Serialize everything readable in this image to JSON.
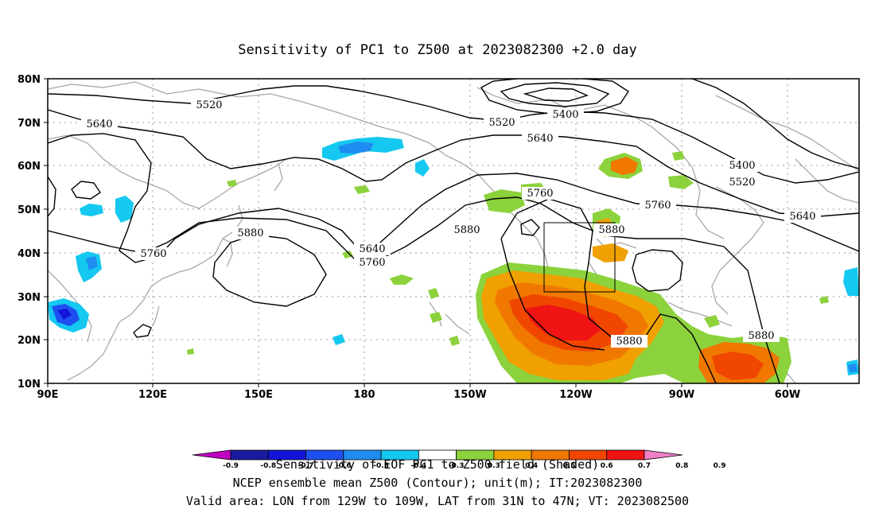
{
  "title": "Sensitivity of PC1 to Z500 at 2023082300 +2.0 day",
  "lat_labels": [
    "80N",
    "70N",
    "60N",
    "50N",
    "40N",
    "30N",
    "20N",
    "10N"
  ],
  "lon_labels": [
    "90E",
    "120E",
    "150E",
    "180",
    "150W",
    "120W",
    "90W",
    "60W"
  ],
  "contour_labels": [
    "5520",
    "5640",
    "5400",
    "5520",
    "5640",
    "5400",
    "5520",
    "5760",
    "5760",
    "5640",
    "5880",
    "5880",
    "5640",
    "5760",
    "5760",
    "5880",
    "5880",
    "5880"
  ],
  "colorbar": {
    "colors": [
      "#c000c0",
      "#1a1aa0",
      "#1414d8",
      "#1e50f0",
      "#1e8cf0",
      "#14c8f0",
      "#ffffff",
      "#8cd23c",
      "#f0a000",
      "#f07800",
      "#f04600",
      "#f01414",
      "#f080c8"
    ],
    "tick_labels": [
      "-0.9",
      "-0.8",
      "-0.7",
      "-0.6",
      "-0.5",
      "-0.4",
      "-0.3",
      "0.3",
      "0.4",
      "0.5",
      "0.6",
      "0.7",
      "0.8",
      "0.9"
    ]
  },
  "captions": [
    "Sensitivity of EOF PC1 to Z500 field (Shaded)",
    "NCEP ensemble mean Z500 (Contour); unit(m); IT:2023082300",
    "Valid area: LON from 129W to 109W, LAT from 31N to 47N; VT: 2023082500"
  ],
  "valid_area": {
    "lon_min": "129W",
    "lon_max": "109W",
    "lat_min": "31N",
    "lat_max": "47N"
  }
}
